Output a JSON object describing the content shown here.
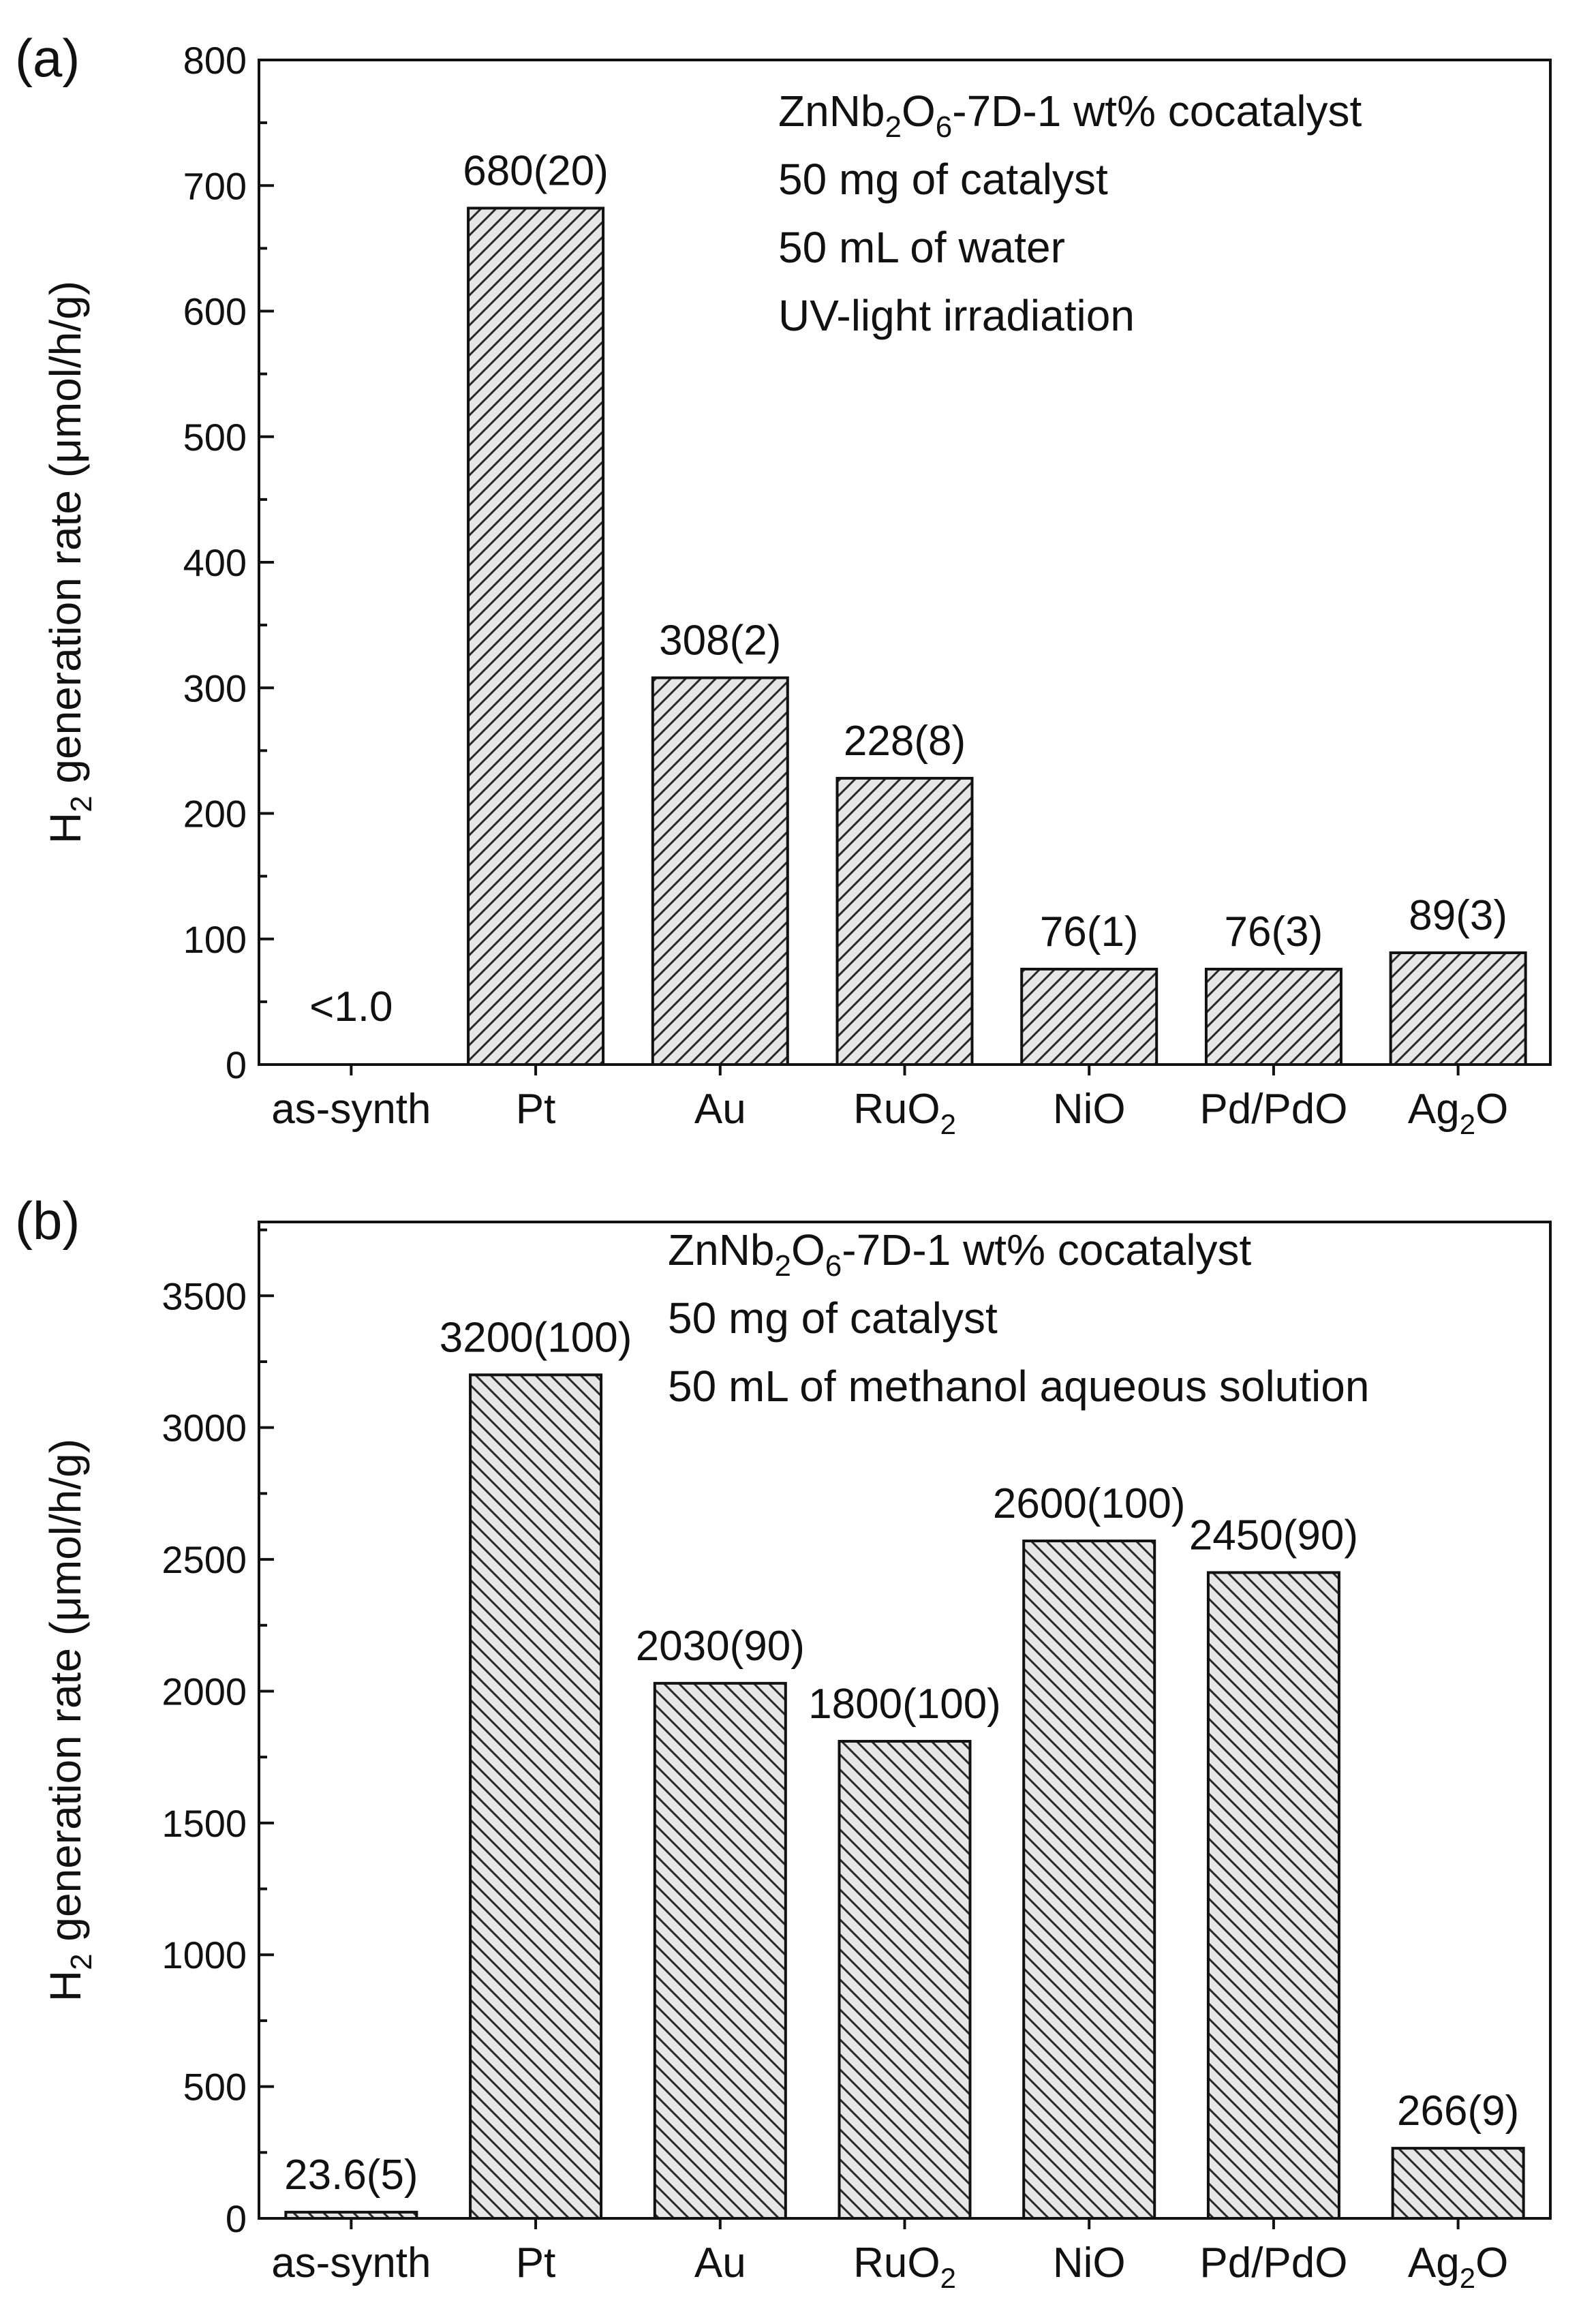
{
  "chart_data": [
    {
      "type": "bar",
      "panel_label": "(a)",
      "categories": [
        "as-synth",
        "Pt",
        "Au",
        "RuO2",
        "NiO",
        "Pd/PdO",
        "Ag2O"
      ],
      "category_labels": [
        {
          "main": "as-synth",
          "sub": "",
          "tail": ""
        },
        {
          "main": "Pt",
          "sub": "",
          "tail": ""
        },
        {
          "main": "Au",
          "sub": "",
          "tail": ""
        },
        {
          "main": "RuO",
          "sub": "2",
          "tail": ""
        },
        {
          "main": "NiO",
          "sub": "",
          "tail": ""
        },
        {
          "main": "Pd/PdO",
          "sub": "",
          "tail": ""
        },
        {
          "main": "Ag",
          "sub": "2",
          "tail": "O"
        }
      ],
      "values": [
        0,
        682,
        308,
        228,
        76,
        76,
        89
      ],
      "value_labels": [
        "<1.0",
        "680(20)",
        "308(2)",
        "228(8)",
        "76(1)",
        "76(3)",
        "89(3)"
      ],
      "ylabel": {
        "main": "H",
        "sub": "2",
        "tail": " generation rate (μmol/h/g)"
      },
      "ylim": [
        0,
        800
      ],
      "yticks": [
        0,
        100,
        200,
        300,
        400,
        500,
        600,
        700,
        800
      ],
      "annotations": [
        {
          "parts": [
            {
              "t": "ZnNb"
            },
            {
              "t": "2",
              "sub": true
            },
            {
              "t": "O"
            },
            {
              "t": "6",
              "sub": true
            },
            {
              "t": "-7D-1 wt% cocatalyst"
            }
          ]
        },
        {
          "parts": [
            {
              "t": "50 mg of catalyst"
            }
          ]
        },
        {
          "parts": [
            {
              "t": "50 mL of water"
            }
          ]
        },
        {
          "parts": [
            {
              "t": "UV-light irradiation"
            }
          ]
        }
      ],
      "hatch": "forward",
      "grid": false
    },
    {
      "type": "bar",
      "panel_label": "(b)",
      "categories": [
        "as-synth",
        "Pt",
        "Au",
        "RuO2",
        "NiO",
        "Pd/PdO",
        "Ag2O"
      ],
      "category_labels": [
        {
          "main": "as-synth",
          "sub": "",
          "tail": ""
        },
        {
          "main": "Pt",
          "sub": "",
          "tail": ""
        },
        {
          "main": "Au",
          "sub": "",
          "tail": ""
        },
        {
          "main": "RuO",
          "sub": "2",
          "tail": ""
        },
        {
          "main": "NiO",
          "sub": "",
          "tail": ""
        },
        {
          "main": "Pd/PdO",
          "sub": "",
          "tail": ""
        },
        {
          "main": "Ag",
          "sub": "2",
          "tail": "O"
        }
      ],
      "values": [
        23.6,
        3200,
        2030,
        1810,
        2570,
        2450,
        266
      ],
      "value_labels": [
        "23.6(5)",
        "3200(100)",
        "2030(90)",
        "1800(100)",
        "2600(100)",
        "2450(90)",
        "266(9)"
      ],
      "ylabel": {
        "main": "H",
        "sub": "2",
        "tail": " generation rate (μmol/h/g)"
      },
      "ylim": [
        0,
        3780
      ],
      "yticks": [
        0,
        500,
        1000,
        1500,
        2000,
        2500,
        3000,
        3500
      ],
      "annotations": [
        {
          "parts": [
            {
              "t": "ZnNb"
            },
            {
              "t": "2",
              "sub": true
            },
            {
              "t": "O"
            },
            {
              "t": "6",
              "sub": true
            },
            {
              "t": "-7D-1 wt% cocatalyst"
            }
          ]
        },
        {
          "parts": [
            {
              "t": "50 mg of catalyst"
            }
          ]
        },
        {
          "parts": [
            {
              "t": "50 mL of methanol aqueous solution"
            }
          ]
        }
      ],
      "hatch": "backward",
      "grid": false
    }
  ]
}
